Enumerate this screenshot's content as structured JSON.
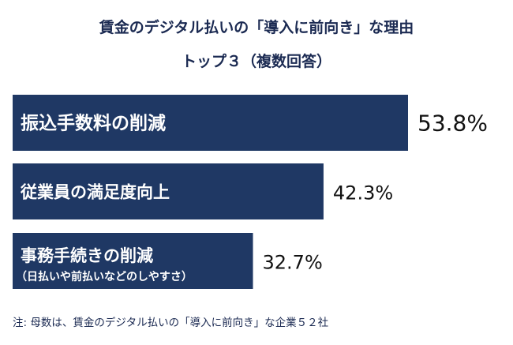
{
  "title_line1": "賃金のデジタル払いの「導入に前向き」な理由",
  "title_line2": "トップ３（複数回答）",
  "note": "注: 母数は、賃金のデジタル払いの「導入に前向き」な企業５２社",
  "colors": {
    "bar": "#1f3864",
    "bar_text": "#ffffff",
    "value_text": "#111111",
    "title": "#1b2a52"
  },
  "chart_data": {
    "type": "bar",
    "orientation": "horizontal",
    "categories": [
      "振込手数料の削減",
      "従業員の満足度向上",
      "事務手続きの削減"
    ],
    "category_sublabels": [
      "",
      "",
      "（日払いや前払いなどのしやすさ）"
    ],
    "values": [
      53.8,
      42.3,
      32.7
    ],
    "value_labels": [
      "53.8%",
      "42.3%",
      "32.7%"
    ],
    "unit": "%",
    "grid": false,
    "legend": "none"
  }
}
